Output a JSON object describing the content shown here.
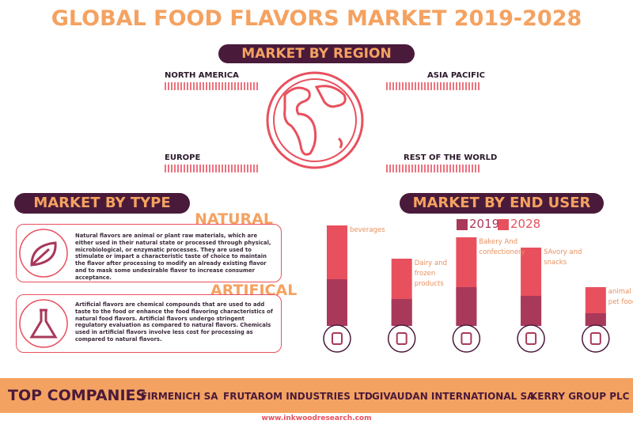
{
  "title": "GLOBAL FOOD FLAVORS MARKET 2019-2028",
  "region": {
    "heading": "MARKET BY REGION",
    "regions": [
      "NORTH AMERICA",
      "ASIA PACIFIC",
      "EUROPE",
      "REST OF THE WORLD"
    ]
  },
  "type_section": {
    "heading": "MARKET BY TYPE",
    "items": [
      {
        "name": "NATURAL",
        "text": "Natural flavors are animal or plant raw materials, which are either used in their natural state or processed through physical, microbiological, or enzymatic processes. They are used to stimulate or impart a characteristic taste of choice to maintain the flavor after processing to modify an already existing flavor and to mask some undesirable flavor to increase consumer acceptance."
      },
      {
        "name": "ARTIFICAL",
        "text": "Artificial flavors are chemical compounds that are used to add taste to the food or enhance the food flavoring characteristics of natural food flavors. Artificial flavors undergo stringent regulatory evaluation as compared to natural flavors. Chemicals used in artificial flavors involve less cost for processing as compared to natural flavors."
      }
    ]
  },
  "chart_data": {
    "type": "bar",
    "title": "MARKET BY END USER",
    "categories": [
      "beverages",
      "Dairy and frozen products",
      "Bakery And confectionery",
      "SAvory and snacks",
      "animal and pet food"
    ],
    "series": [
      {
        "name": "2019",
        "color": "#a8395a",
        "values": [
          59,
          34,
          49,
          38,
          16
        ]
      },
      {
        "name": "2028",
        "color": "#e8505e",
        "values": [
          127,
          85,
          112,
          99,
          49
        ]
      }
    ]
  },
  "companies": {
    "heading": "TOP COMPANIES",
    "names": [
      "FIRMENICH SA",
      "FRUTAROM INDUSTRIES LTD",
      "GIVAUDAN INTERNATIONAL SA",
      "KERRY GROUP PLC"
    ]
  },
  "footer": "www.inkwoodresearch.com"
}
